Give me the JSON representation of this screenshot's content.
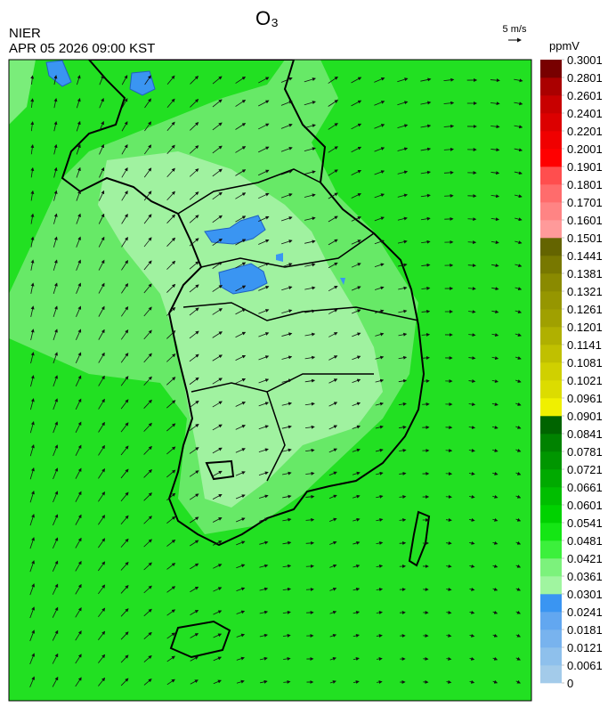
{
  "header": {
    "source": "NIER",
    "datetime": "APR 05 2026 09:00 KST",
    "title": "O₃",
    "vector_scale": "5 m/s"
  },
  "colorbar": {
    "unit": "ppmV",
    "labels": [
      0,
      0.0061,
      0.0121,
      0.0181,
      0.0241,
      0.0301,
      0.0361,
      0.0421,
      0.0481,
      0.0541,
      0.0601,
      0.0661,
      0.0721,
      0.0781,
      0.0841,
      0.0901,
      0.0961,
      0.1021,
      0.1081,
      0.1141,
      0.1201,
      0.1261,
      0.1321,
      0.1381,
      0.1441,
      0.1501,
      0.1601,
      0.1701,
      0.1801,
      0.1901,
      0.2001,
      0.2201,
      0.2401,
      0.2601,
      0.2801,
      0.3001
    ],
    "colors": [
      "#a3cbea",
      "#8ec0ec",
      "#78b3ee",
      "#62a7f0",
      "#3a95f2",
      "#a0f5a0",
      "#7cf27c",
      "#3cf03c",
      "#14e614",
      "#00d200",
      "#00be00",
      "#00aa00",
      "#009600",
      "#008200",
      "#006400",
      "#f0f000",
      "#dcdc00",
      "#d0d000",
      "#c0c000",
      "#b0b000",
      "#a0a000",
      "#969600",
      "#8a8a00",
      "#787800",
      "#646400",
      "#ff9a9a",
      "#ff8484",
      "#ff6c6c",
      "#ff4e4e",
      "#ff0000",
      "#f00000",
      "#dc0000",
      "#c80000",
      "#aa0000",
      "#780000"
    ]
  }
}
